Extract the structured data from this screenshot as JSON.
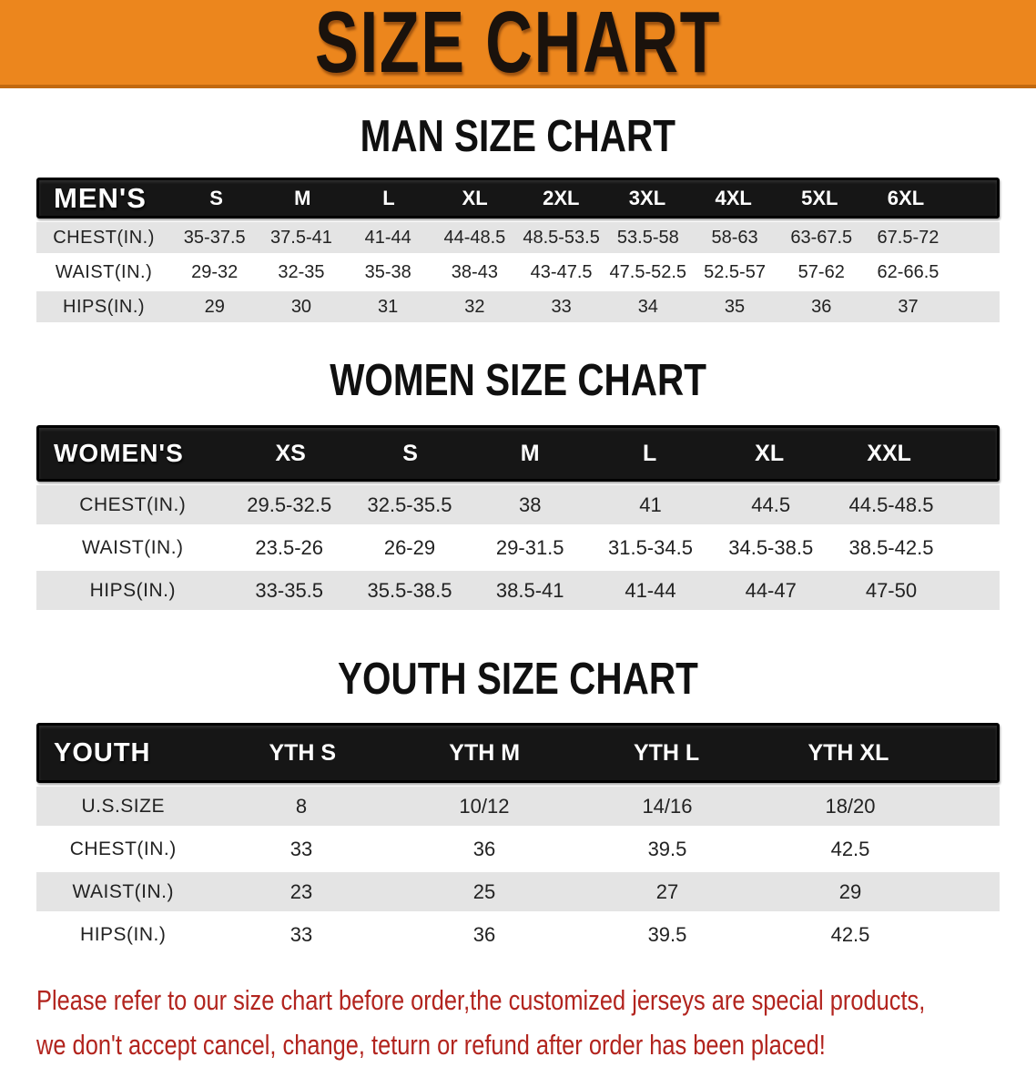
{
  "banner": {
    "title": "SIZE CHART"
  },
  "sections": {
    "men": {
      "heading": "MAN SIZE CHART",
      "corner": "MEN'S",
      "sizes": [
        "S",
        "M",
        "L",
        "XL",
        "2XL",
        "3XL",
        "4XL",
        "5XL",
        "6XL"
      ],
      "rows": [
        {
          "label": "CHEST(IN.)",
          "values": [
            "35-37.5",
            "37.5-41",
            "41-44",
            "44-48.5",
            "48.5-53.5",
            "53.5-58",
            "58-63",
            "63-67.5",
            "67.5-72"
          ]
        },
        {
          "label": "WAIST(IN.)",
          "values": [
            "29-32",
            "32-35",
            "35-38",
            "38-43",
            "43-47.5",
            "47.5-52.5",
            "52.5-57",
            "57-62",
            "62-66.5"
          ]
        },
        {
          "label": "HIPS(IN.)",
          "values": [
            "29",
            "30",
            "31",
            "32",
            "33",
            "34",
            "35",
            "36",
            "37"
          ]
        }
      ]
    },
    "women": {
      "heading": "WOMEN SIZE CHART",
      "corner": "WOMEN'S",
      "sizes": [
        "XS",
        "S",
        "M",
        "L",
        "XL",
        "XXL"
      ],
      "rows": [
        {
          "label": "CHEST(IN.)",
          "values": [
            "29.5-32.5",
            "32.5-35.5",
            "38",
            "41",
            "44.5",
            "44.5-48.5"
          ]
        },
        {
          "label": "WAIST(IN.)",
          "values": [
            "23.5-26",
            "26-29",
            "29-31.5",
            "31.5-34.5",
            "34.5-38.5",
            "38.5-42.5"
          ]
        },
        {
          "label": "HIPS(IN.)",
          "values": [
            "33-35.5",
            "35.5-38.5",
            "38.5-41",
            "41-44",
            "44-47",
            "47-50"
          ]
        }
      ]
    },
    "youth": {
      "heading": "YOUTH SIZE CHART",
      "corner": "YOUTH",
      "sizes": [
        "YTH S",
        "YTH M",
        "YTH L",
        "YTH XL"
      ],
      "rows": [
        {
          "label": "U.S.SIZE",
          "values": [
            "8",
            "10/12",
            "14/16",
            "18/20"
          ]
        },
        {
          "label": "CHEST(IN.)",
          "values": [
            "33",
            "36",
            "39.5",
            "42.5"
          ]
        },
        {
          "label": "WAIST(IN.)",
          "values": [
            "23",
            "25",
            "27",
            "29"
          ]
        },
        {
          "label": "HIPS(IN.)",
          "values": [
            "33",
            "36",
            "39.5",
            "42.5"
          ]
        }
      ]
    }
  },
  "footer": {
    "line1": "Please refer to our size chart before order,the customized jerseys are special products,",
    "line2": "we don't accept cancel, change, teturn or refund after order has been placed!"
  },
  "colors": {
    "banner_bg": "#ec861d",
    "banner_edge": "#c2690f",
    "bar_bg": "#161616",
    "bar_text": "#ffffff",
    "row_alt": "#e4e4e4",
    "row_white": "#ffffff",
    "text_dark": "#222222",
    "note_red": "#b2241e",
    "page_bg": "#ffffff"
  }
}
